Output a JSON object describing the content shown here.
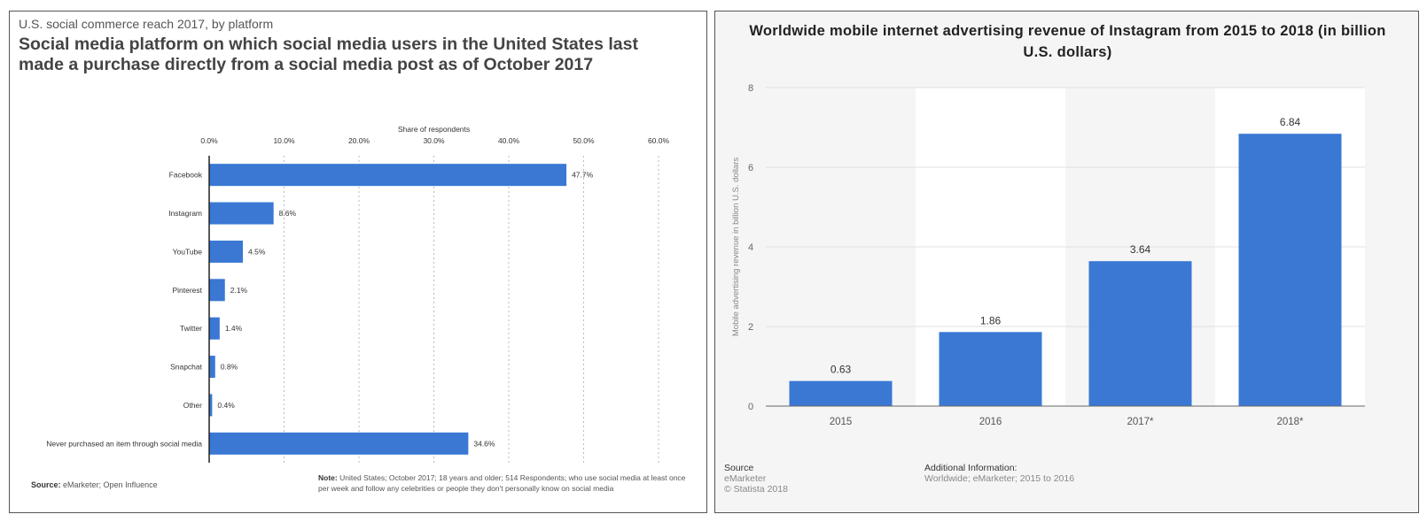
{
  "left": {
    "subtitle": "U.S. social commerce reach 2017, by platform",
    "title": "Social media platform on which social media users in the United States last made a purchase directly from a social media post as of October 2017",
    "source_label": "Source:",
    "source_text": "eMarketer; Open Influence",
    "note_label": "Note:",
    "note_text": "United States; October 2017; 18 years and older; 514 Respondents; who use social media at least once per week and follow any celebrities or people they don't personally know on social media"
  },
  "right": {
    "title": "Worldwide mobile internet advertising revenue of Instagram from 2015 to 2018 (in billion U.S. dollars)",
    "source_label": "Source",
    "source_lines": [
      "eMarketer",
      "© Statista 2018"
    ],
    "addinfo_label": "Additional Information:",
    "addinfo_text": "Worldwide; eMarketer; 2015 to 2016"
  },
  "colors": {
    "bar": "#3a78d4",
    "axis": "#333333",
    "grid": "#bbbbbb",
    "text": "#555555"
  },
  "chart_data": [
    {
      "type": "bar",
      "orientation": "horizontal",
      "xlabel": "Share of respondents",
      "ylabel": "",
      "categories": [
        "Facebook",
        "Instagram",
        "YouTube",
        "Pinterest",
        "Twitter",
        "Snapchat",
        "Other",
        "Never purchased an item through social media"
      ],
      "values": [
        47.7,
        8.6,
        4.5,
        2.1,
        1.4,
        0.8,
        0.4,
        34.6
      ],
      "value_labels": [
        "47.7%",
        "8.6%",
        "4.5%",
        "2.1%",
        "1.4%",
        "0.8%",
        "0.4%",
        "34.6%"
      ],
      "xlim": [
        0,
        60
      ],
      "ticks": [
        "0.0%",
        "10.0%",
        "20.0%",
        "30.0%",
        "40.0%",
        "50.0%",
        "60.0%"
      ],
      "grid": true,
      "grid_style": "dotted"
    },
    {
      "type": "bar",
      "orientation": "vertical",
      "xlabel": "",
      "ylabel": "Mobile advertising revenue in billion U.S. dollars",
      "categories": [
        "2015",
        "2016",
        "2017*",
        "2018*"
      ],
      "values": [
        0.63,
        1.86,
        3.64,
        6.84
      ],
      "value_labels": [
        "0.63",
        "1.86",
        "3.64",
        "6.84"
      ],
      "ylim": [
        0,
        8
      ],
      "ticks": [
        "0",
        "2",
        "4",
        "6",
        "8"
      ],
      "grid": true
    }
  ]
}
